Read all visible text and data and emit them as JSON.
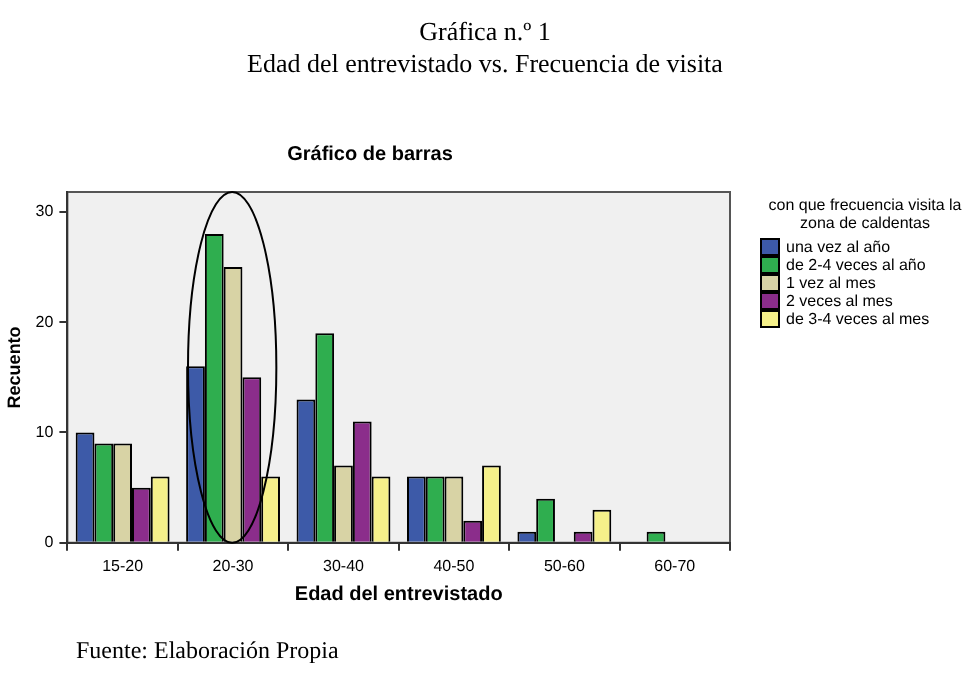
{
  "chart_data": {
    "type": "bar",
    "title": "Gráfica n.º 1",
    "subtitle": "Edad del entrevistado vs. Frecuencia de visita",
    "xlabel": "Edad del entrevistado",
    "ylabel": "Recuento",
    "legend_title": "con que frecuencia visita la zona de caldentas",
    "annotations": [
      "Gráfico de barras",
      "Fuente: Elaboración Propia"
    ],
    "categories": [
      "15-20",
      "20-30",
      "30-40",
      "40-50",
      "50-60",
      "60-70"
    ],
    "series": [
      {
        "name": "una vez al año",
        "color": "#3d5aa8",
        "values": [
          10,
          16,
          13,
          6,
          1,
          0
        ]
      },
      {
        "name": "de 2-4 veces al año",
        "color": "#2fae4f",
        "values": [
          9,
          28,
          19,
          6,
          4,
          1
        ]
      },
      {
        "name": "1 vez al mes",
        "color": "#d8d3a5",
        "values": [
          9,
          25,
          7,
          6,
          0,
          0
        ]
      },
      {
        "name": "2 veces al mes",
        "color": "#8b2d8b",
        "values": [
          5,
          15,
          11,
          2,
          1,
          0
        ]
      },
      {
        "name": "de 3-4 veces al mes",
        "color": "#f5f08a",
        "values": [
          6,
          6,
          6,
          7,
          3,
          0
        ]
      }
    ],
    "ylim": [
      0,
      31.8
    ],
    "yticks": [
      0,
      10,
      20,
      30
    ],
    "grid": false,
    "legend": "right"
  }
}
